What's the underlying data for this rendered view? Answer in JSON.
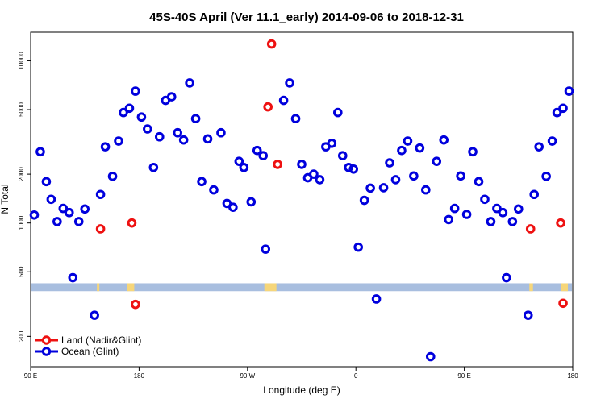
{
  "chart_data": {
    "type": "scatter",
    "title": "45S-40S April (Ver 11.1_early)   2014-09-06 to 2018-12-31",
    "xlabel": "Longitude (deg E)",
    "ylabel": "N Total",
    "y_scale": "log",
    "xlim": [
      90,
      540
    ],
    "ylim": [
      130,
      15000
    ],
    "x_ticks": [
      {
        "value": 90,
        "label": "90 E"
      },
      {
        "value": 180,
        "label": "180"
      },
      {
        "value": 270,
        "label": "90 W"
      },
      {
        "value": 360,
        "label": "0"
      },
      {
        "value": 450,
        "label": "90 E"
      },
      {
        "value": 540,
        "label": "180"
      }
    ],
    "y_ticks": [
      {
        "value": 200,
        "label": "200"
      },
      {
        "value": 500,
        "label": "500"
      },
      {
        "value": 1000,
        "label": "1000"
      },
      {
        "value": 2000,
        "label": "2000"
      },
      {
        "value": 5000,
        "label": "5000"
      },
      {
        "value": 10000,
        "label": "10000"
      }
    ],
    "legend_position": "bottom-left",
    "series": [
      {
        "name": "Land (Nadir&Glint)",
        "color": "#ee1111",
        "points": [
          [
            148,
            920
          ],
          [
            174,
            1000
          ],
          [
            177,
            315
          ],
          [
            287,
            5200
          ],
          [
            290,
            12700
          ],
          [
            295,
            2300
          ],
          [
            505,
            920
          ],
          [
            530,
            1000
          ],
          [
            532,
            320
          ]
        ]
      },
      {
        "name": "Ocean (Glint)",
        "color": "#0000dd",
        "points": [
          [
            93,
            1120
          ],
          [
            98,
            2750
          ],
          [
            103,
            1800
          ],
          [
            107,
            1400
          ],
          [
            112,
            1020
          ],
          [
            117,
            1230
          ],
          [
            122,
            1160
          ],
          [
            125,
            460
          ],
          [
            130,
            1020
          ],
          [
            135,
            1220
          ],
          [
            143,
            270
          ],
          [
            148,
            1500
          ],
          [
            152,
            2950
          ],
          [
            158,
            1940
          ],
          [
            163,
            3200
          ],
          [
            167,
            4800
          ],
          [
            172,
            5100
          ],
          [
            177,
            6500
          ],
          [
            182,
            4500
          ],
          [
            187,
            3800
          ],
          [
            192,
            2200
          ],
          [
            197,
            3400
          ],
          [
            202,
            5700
          ],
          [
            207,
            6000
          ],
          [
            212,
            3600
          ],
          [
            217,
            3250
          ],
          [
            222,
            7300
          ],
          [
            227,
            4400
          ],
          [
            232,
            1800
          ],
          [
            237,
            3300
          ],
          [
            242,
            1600
          ],
          [
            248,
            3600
          ],
          [
            253,
            1320
          ],
          [
            258,
            1250
          ],
          [
            263,
            2400
          ],
          [
            267,
            2200
          ],
          [
            273,
            1350
          ],
          [
            278,
            2800
          ],
          [
            283,
            2600
          ],
          [
            285,
            690
          ],
          [
            300,
            5700
          ],
          [
            305,
            7300
          ],
          [
            310,
            4400
          ],
          [
            315,
            2300
          ],
          [
            320,
            1900
          ],
          [
            325,
            2000
          ],
          [
            330,
            1850
          ],
          [
            335,
            2950
          ],
          [
            340,
            3100
          ],
          [
            345,
            4800
          ],
          [
            349,
            2600
          ],
          [
            354,
            2200
          ],
          [
            358,
            2150
          ],
          [
            362,
            710
          ],
          [
            367,
            1380
          ],
          [
            372,
            1640
          ],
          [
            377,
            340
          ],
          [
            383,
            1650
          ],
          [
            388,
            2350
          ],
          [
            393,
            1850
          ],
          [
            398,
            2800
          ],
          [
            403,
            3200
          ],
          [
            408,
            1950
          ],
          [
            413,
            2900
          ],
          [
            418,
            1600
          ],
          [
            422,
            150
          ],
          [
            427,
            2400
          ],
          [
            433,
            3250
          ],
          [
            437,
            1050
          ],
          [
            442,
            1230
          ],
          [
            447,
            1950
          ],
          [
            452,
            1130
          ],
          [
            457,
            2750
          ],
          [
            462,
            1800
          ],
          [
            467,
            1400
          ],
          [
            472,
            1020
          ],
          [
            477,
            1230
          ],
          [
            482,
            1160
          ],
          [
            485,
            460
          ],
          [
            490,
            1020
          ],
          [
            495,
            1220
          ],
          [
            503,
            270
          ],
          [
            508,
            1500
          ],
          [
            512,
            2950
          ],
          [
            518,
            1940
          ],
          [
            523,
            3200
          ],
          [
            527,
            4800
          ],
          [
            532,
            5100
          ],
          [
            537,
            6500
          ]
        ]
      }
    ],
    "bands": [
      {
        "y_low": 380,
        "y_high": 425,
        "color": "#a8bedf"
      }
    ],
    "land_marks": [
      {
        "x_low": 145,
        "x_high": 147,
        "color": "#f6d67a"
      },
      {
        "x_low": 170,
        "x_high": 176,
        "color": "#f6d67a"
      },
      {
        "x_low": 284,
        "x_high": 294,
        "color": "#f6d67a"
      },
      {
        "x_low": 504,
        "x_high": 507,
        "color": "#f6d67a"
      },
      {
        "x_low": 530,
        "x_high": 536,
        "color": "#f6d67a"
      }
    ]
  }
}
